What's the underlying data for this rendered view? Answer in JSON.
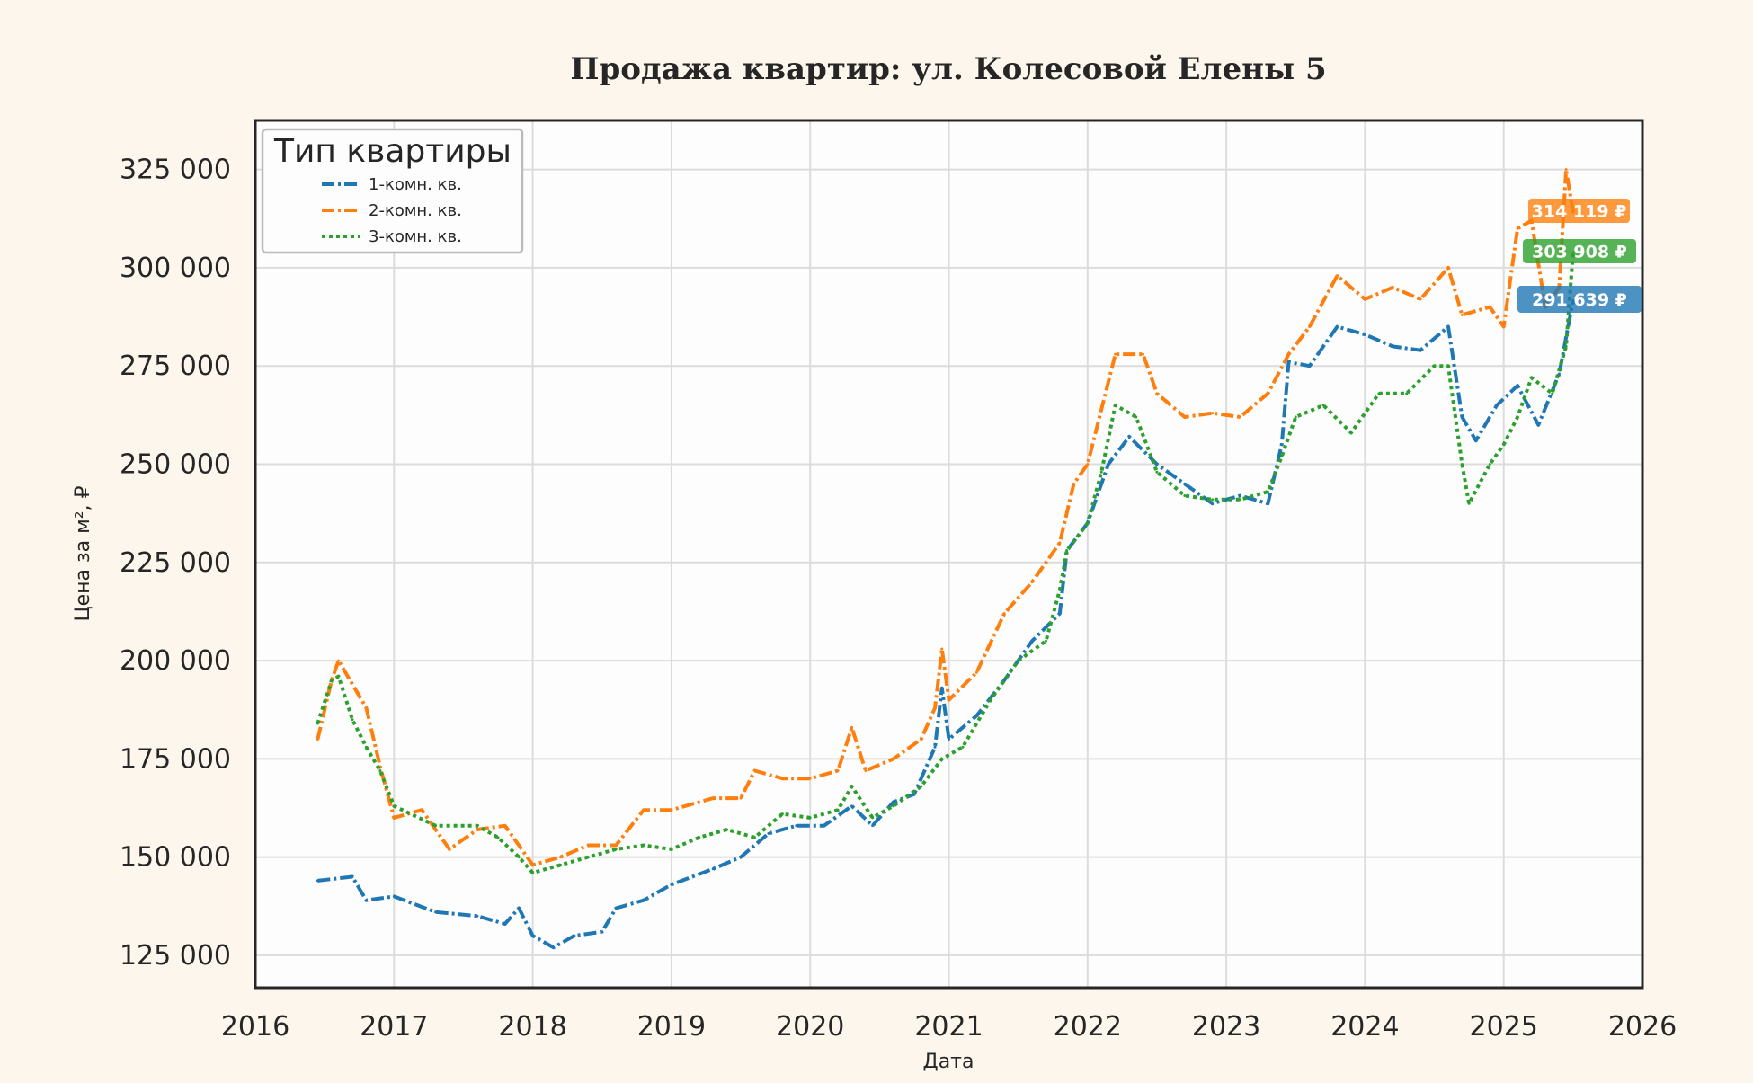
{
  "chart_data": {
    "type": "line",
    "title": "Продажа квартир: ул. Колесовой Елены 5",
    "xlabel": "Дата",
    "ylabel": "Цена за м², ₽",
    "xlim": [
      2016,
      2026
    ],
    "ylim": [
      116750,
      337500
    ],
    "xticks": [
      2016,
      2017,
      2018,
      2019,
      2020,
      2021,
      2022,
      2023,
      2024,
      2025,
      2026
    ],
    "xtick_labels": [
      "2016",
      "2017",
      "2018",
      "2019",
      "2020",
      "2021",
      "2022",
      "2023",
      "2024",
      "2025",
      "2026"
    ],
    "yticks": [
      125000,
      150000,
      175000,
      200000,
      225000,
      250000,
      275000,
      300000,
      325000
    ],
    "ytick_labels": [
      "125 000",
      "150 000",
      "175 000",
      "200 000",
      "225 000",
      "250 000",
      "275 000",
      "300 000",
      "325 000"
    ],
    "grid": true,
    "legend": {
      "title": "Тип квартиры",
      "placement": "top-left"
    },
    "series": [
      {
        "name": "1-комн. кв.",
        "color": "#1f77b4",
        "style": "dash-dot",
        "last_label": "291 639 ₽",
        "x": [
          2016.45,
          2016.7,
          2016.8,
          2017.0,
          2017.3,
          2017.6,
          2017.8,
          2017.9,
          2018.0,
          2018.15,
          2018.3,
          2018.5,
          2018.6,
          2018.8,
          2019.0,
          2019.3,
          2019.5,
          2019.7,
          2019.9,
          2020.1,
          2020.3,
          2020.45,
          2020.6,
          2020.75,
          2020.9,
          2020.95,
          2021.0,
          2021.2,
          2021.4,
          2021.6,
          2021.8,
          2021.85,
          2022.0,
          2022.15,
          2022.3,
          2022.5,
          2022.7,
          2022.9,
          2023.1,
          2023.3,
          2023.4,
          2023.45,
          2023.6,
          2023.8,
          2024.0,
          2024.2,
          2024.4,
          2024.6,
          2024.7,
          2024.8,
          2024.95,
          2025.1,
          2025.25,
          2025.4,
          2025.5
        ],
        "y": [
          144000,
          145000,
          139000,
          140000,
          136000,
          135000,
          133000,
          137000,
          130000,
          127000,
          130000,
          131000,
          137000,
          139000,
          143000,
          147000,
          150000,
          156000,
          158000,
          158000,
          163000,
          158000,
          164000,
          166000,
          178000,
          193000,
          180000,
          186000,
          195000,
          205000,
          212000,
          228000,
          235000,
          250000,
          257000,
          250000,
          245000,
          240000,
          242000,
          240000,
          255000,
          276000,
          275000,
          285000,
          283000,
          280000,
          279000,
          285000,
          262000,
          256000,
          265000,
          270000,
          260000,
          273000,
          291639
        ]
      },
      {
        "name": "2-комн. кв.",
        "color": "#ff7f0e",
        "style": "dash-dot",
        "last_label": "314 119 ₽",
        "x": [
          2016.45,
          2016.55,
          2016.6,
          2016.8,
          2016.9,
          2017.0,
          2017.2,
          2017.4,
          2017.6,
          2017.8,
          2017.9,
          2018.0,
          2018.2,
          2018.4,
          2018.6,
          2018.8,
          2019.0,
          2019.3,
          2019.5,
          2019.6,
          2019.8,
          2020.0,
          2020.2,
          2020.3,
          2020.4,
          2020.6,
          2020.8,
          2020.9,
          2020.95,
          2021.0,
          2021.2,
          2021.4,
          2021.6,
          2021.8,
          2021.9,
          2022.0,
          2022.2,
          2022.4,
          2022.5,
          2022.7,
          2022.9,
          2023.1,
          2023.3,
          2023.45,
          2023.6,
          2023.8,
          2024.0,
          2024.2,
          2024.4,
          2024.6,
          2024.7,
          2024.9,
          2025.0,
          2025.1,
          2025.2,
          2025.3,
          2025.4,
          2025.45,
          2025.5
        ],
        "y": [
          180000,
          195000,
          200000,
          188000,
          173000,
          160000,
          162000,
          152000,
          157000,
          158000,
          153000,
          148000,
          150000,
          153000,
          153000,
          162000,
          162000,
          165000,
          165000,
          172000,
          170000,
          170000,
          172000,
          183000,
          172000,
          175000,
          180000,
          188000,
          203000,
          190000,
          197000,
          212000,
          220000,
          230000,
          245000,
          250000,
          278000,
          278000,
          268000,
          262000,
          263000,
          262000,
          268000,
          278000,
          285000,
          298000,
          292000,
          295000,
          292000,
          300000,
          288000,
          290000,
          285000,
          310000,
          312000,
          290000,
          295000,
          325000,
          314119
        ]
      },
      {
        "name": "3-комн. кв.",
        "color": "#2ca02c",
        "style": "dotted",
        "last_label": "303 908 ₽",
        "x": [
          2016.45,
          2016.55,
          2016.6,
          2016.7,
          2016.8,
          2016.9,
          2017.0,
          2017.3,
          2017.6,
          2017.75,
          2017.9,
          2018.0,
          2018.2,
          2018.4,
          2018.6,
          2018.8,
          2019.0,
          2019.2,
          2019.4,
          2019.6,
          2019.8,
          2020.0,
          2020.2,
          2020.3,
          2020.45,
          2020.6,
          2020.8,
          2020.95,
          2021.1,
          2021.3,
          2021.5,
          2021.7,
          2021.8,
          2021.85,
          2022.0,
          2022.1,
          2022.2,
          2022.35,
          2022.5,
          2022.7,
          2022.9,
          2023.1,
          2023.3,
          2023.4,
          2023.5,
          2023.7,
          2023.9,
          2024.1,
          2024.3,
          2024.5,
          2024.6,
          2024.7,
          2024.75,
          2024.9,
          2025.0,
          2025.1,
          2025.2,
          2025.35,
          2025.45,
          2025.5
        ],
        "y": [
          184000,
          195000,
          196000,
          185000,
          178000,
          172000,
          163000,
          158000,
          158000,
          155000,
          150000,
          146000,
          148000,
          150000,
          152000,
          153000,
          152000,
          155000,
          157000,
          155000,
          161000,
          160000,
          162000,
          168000,
          160000,
          163000,
          168000,
          175000,
          178000,
          190000,
          200000,
          205000,
          218000,
          228000,
          235000,
          248000,
          265000,
          262000,
          248000,
          242000,
          241000,
          241000,
          243000,
          252000,
          262000,
          265000,
          258000,
          268000,
          268000,
          275000,
          275000,
          250000,
          240000,
          250000,
          255000,
          262000,
          272000,
          268000,
          280000,
          303908
        ]
      }
    ]
  }
}
